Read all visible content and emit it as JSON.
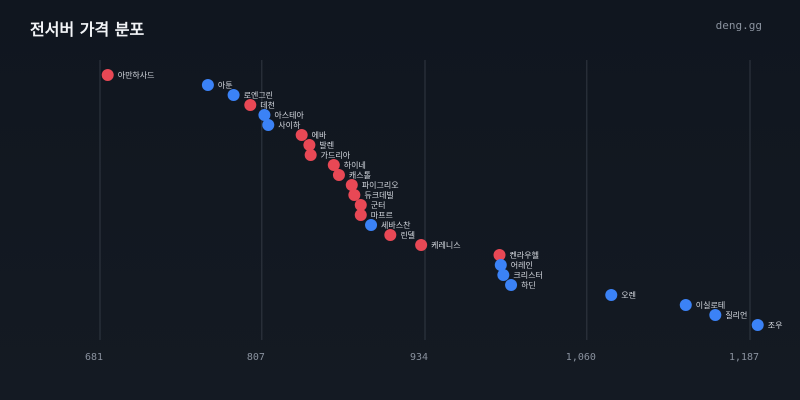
{
  "header": {
    "title": "전서버 가격 분포",
    "brand": "deng.gg"
  },
  "colors": {
    "red": "#e84855",
    "blue": "#3b82f6",
    "grid": "#3a414c",
    "background": "#12181f"
  },
  "chart_data": {
    "type": "scatter",
    "title": "전서버 가격 분포",
    "xlabel": "",
    "ylabel": "",
    "xticks": [
      681,
      807,
      934,
      1060,
      1187
    ],
    "xtick_labels": [
      "681",
      "807",
      "934",
      "1,060",
      "1,187"
    ],
    "xlim": [
      681,
      1187
    ],
    "grid": "vertical",
    "series_colors": [
      "red",
      "blue"
    ],
    "points": [
      {
        "label": "아만하사드",
        "x": 687,
        "color": "red"
      },
      {
        "label": "아툰",
        "x": 765,
        "color": "blue"
      },
      {
        "label": "로엔그린",
        "x": 785,
        "color": "blue"
      },
      {
        "label": "데천",
        "x": 798,
        "color": "red"
      },
      {
        "label": "아스테아",
        "x": 809,
        "color": "blue"
      },
      {
        "label": "사이하",
        "x": 812,
        "color": "blue"
      },
      {
        "label": "에바",
        "x": 838,
        "color": "red"
      },
      {
        "label": "발렌",
        "x": 844,
        "color": "red"
      },
      {
        "label": "가드리아",
        "x": 845,
        "color": "red"
      },
      {
        "label": "하이네",
        "x": 863,
        "color": "red"
      },
      {
        "label": "캐스톨",
        "x": 867,
        "color": "red"
      },
      {
        "label": "파이그리오",
        "x": 877,
        "color": "red"
      },
      {
        "label": "듀크데빌",
        "x": 879,
        "color": "red"
      },
      {
        "label": "군터",
        "x": 884,
        "color": "red"
      },
      {
        "label": "마프르",
        "x": 884,
        "color": "red"
      },
      {
        "label": "세바스찬",
        "x": 892,
        "color": "blue"
      },
      {
        "label": "린델",
        "x": 907,
        "color": "red"
      },
      {
        "label": "케레니스",
        "x": 931,
        "color": "red"
      },
      {
        "label": "켄라우헬",
        "x": 992,
        "color": "red"
      },
      {
        "label": "어레인",
        "x": 993,
        "color": "blue"
      },
      {
        "label": "크리스터",
        "x": 995,
        "color": "blue"
      },
      {
        "label": "하딘",
        "x": 1001,
        "color": "blue"
      },
      {
        "label": "오렌",
        "x": 1079,
        "color": "blue"
      },
      {
        "label": "이실로테",
        "x": 1137,
        "color": "blue"
      },
      {
        "label": "질리언",
        "x": 1160,
        "color": "blue"
      },
      {
        "label": "조우",
        "x": 1193,
        "color": "blue"
      }
    ]
  }
}
